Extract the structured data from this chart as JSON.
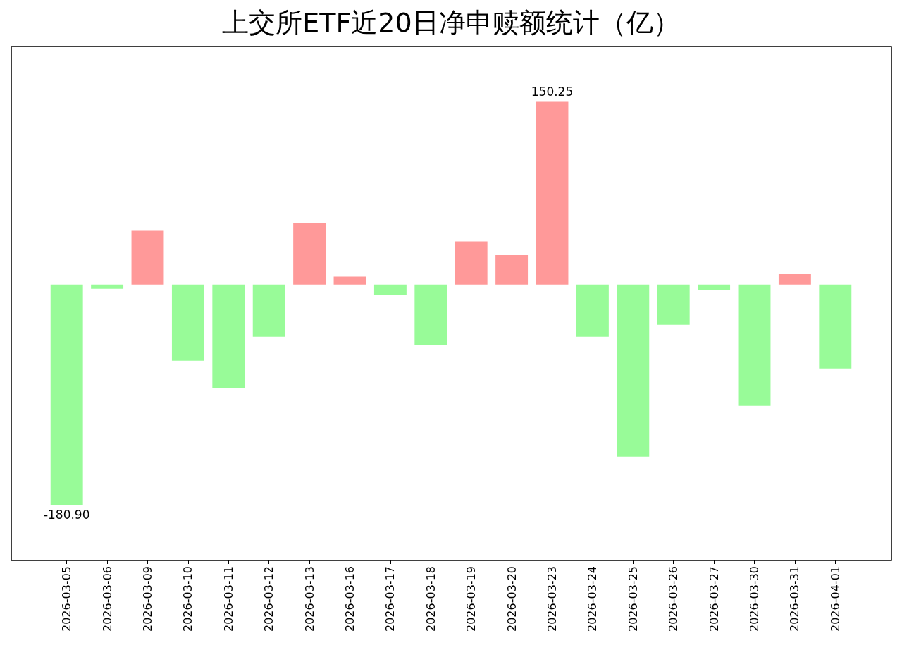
{
  "chart_data": {
    "type": "bar",
    "title": "上交所ETF近20日净申赎额统计（亿）",
    "categories": [
      "2026-03-05",
      "2026-03-06",
      "2026-03-09",
      "2026-03-10",
      "2026-03-11",
      "2026-03-12",
      "2026-03-13",
      "2026-03-16",
      "2026-03-17",
      "2026-03-18",
      "2026-03-19",
      "2026-03-20",
      "2026-03-23",
      "2026-03-24",
      "2026-03-25",
      "2026-03-26",
      "2026-03-27",
      "2026-03-30",
      "2026-03-31",
      "2026-04-01"
    ],
    "values": [
      -180.9,
      -3.5,
      44.5,
      -62.4,
      -85.0,
      -42.8,
      50.3,
      6.4,
      -8.7,
      -49.7,
      35.3,
      24.3,
      150.25,
      -42.8,
      -141.0,
      -32.9,
      -4.6,
      -99.4,
      8.7,
      -68.8
    ],
    "colors": [
      "#98fb98",
      "#98fb98",
      "#ff9999",
      "#98fb98",
      "#98fb98",
      "#98fb98",
      "#ff9999",
      "#ff9999",
      "#98fb98",
      "#98fb98",
      "#ff9999",
      "#ff9999",
      "#ff9999",
      "#98fb98",
      "#98fb98",
      "#98fb98",
      "#98fb98",
      "#98fb98",
      "#ff9999",
      "#98fb98"
    ],
    "value_labels": [
      "-180.90",
      null,
      null,
      null,
      null,
      null,
      null,
      null,
      null,
      null,
      null,
      null,
      "150.25",
      null,
      null,
      null,
      null,
      null,
      null,
      null
    ],
    "ylim": [
      -226,
      195
    ],
    "grid": false
  }
}
